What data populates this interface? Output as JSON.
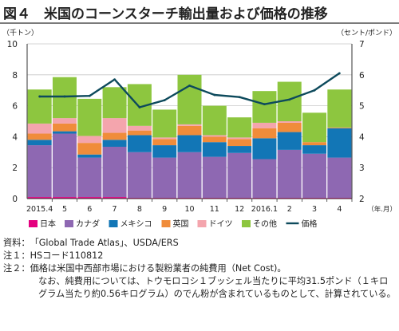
{
  "title": "図４　米国のコーンスターチ輸出量および価格の推移",
  "chart_data": {
    "type": "bar+line",
    "y_left_label": "（千トン）",
    "y_right_label": "（セント/ポンド）",
    "y_left_ticks": [
      "0",
      "2",
      "4",
      "6",
      "8",
      "10"
    ],
    "y_right_ticks": [
      "2",
      "3",
      "4",
      "5",
      "6",
      "7"
    ],
    "ylim_left": [
      0,
      10
    ],
    "ylim_right": [
      2,
      7
    ],
    "x_unit": "（年.月）",
    "categories": [
      "2015.4",
      "5",
      "6",
      "7",
      "8",
      "9",
      "10",
      "11",
      "12",
      "2016.1",
      "2",
      "3",
      "4"
    ],
    "stack_order": [
      "日本",
      "カナダ",
      "メキシコ",
      "英国",
      "ドイツ",
      "その他"
    ],
    "series": [
      {
        "name": "日本",
        "color": "#e4007f",
        "values": [
          0.1,
          0.1,
          0.1,
          0.1,
          0.05,
          0.05,
          0.05,
          0.05,
          0.05,
          0.05,
          0.05,
          0.05,
          0.05
        ]
      },
      {
        "name": "カナダ",
        "color": "#8e68b2",
        "values": [
          3.35,
          4.1,
          2.55,
          3.25,
          2.95,
          2.6,
          2.95,
          2.65,
          2.9,
          2.5,
          3.1,
          2.85,
          2.6
        ]
      },
      {
        "name": "メキシコ",
        "color": "#1276b6",
        "values": [
          0.35,
          0.15,
          0.2,
          0.45,
          1.1,
          0.8,
          1.1,
          0.95,
          0.45,
          1.35,
          1.15,
          0.55,
          1.9
        ]
      },
      {
        "name": "英国",
        "color": "#f08c3a",
        "values": [
          0.4,
          0.5,
          0.75,
          0.45,
          0.3,
          0.4,
          0.6,
          0.35,
          0.45,
          0.65,
          0.6,
          0.2,
          0.05
        ]
      },
      {
        "name": "ドイツ",
        "color": "#f4a5ad",
        "values": [
          0.65,
          0.35,
          0.45,
          0.95,
          0.3,
          0.1,
          0.1,
          0.1,
          0.1,
          0.35,
          0.1,
          0.0,
          0.0
        ]
      },
      {
        "name": "その他",
        "color": "#8dc63f",
        "values": [
          2.2,
          2.65,
          2.4,
          2.0,
          2.7,
          1.8,
          3.2,
          1.9,
          1.3,
          2.05,
          2.55,
          1.9,
          2.45
        ]
      }
    ],
    "line": {
      "name": "価格",
      "color": "#0d4a5c",
      "values": [
        5.3,
        5.3,
        5.32,
        5.85,
        4.95,
        5.18,
        5.65,
        5.35,
        5.28,
        5.05,
        5.2,
        5.5,
        6.05
      ]
    },
    "legend": [
      "日本",
      "カナダ",
      "メキシコ",
      "英国",
      "ドイツ",
      "その他",
      "価格"
    ]
  },
  "notes": {
    "source_key": "資料：",
    "source_text": "「Global Trade Atlas」、USDA/ERS",
    "note1_key": "注１：",
    "note1_text": "HSコード110812",
    "note2_key": "注２：",
    "note2_text": "価格は米国中西部市場における製粉業者の純費用（Net Cost)。",
    "note2_cont": "なお、純費用については、トウモロコシ１ブッシェル当たりに平均31.5ポンド（１キログラム当たり約0.56キログラム）のでん粉が含まれているものとして、計算されている。"
  }
}
